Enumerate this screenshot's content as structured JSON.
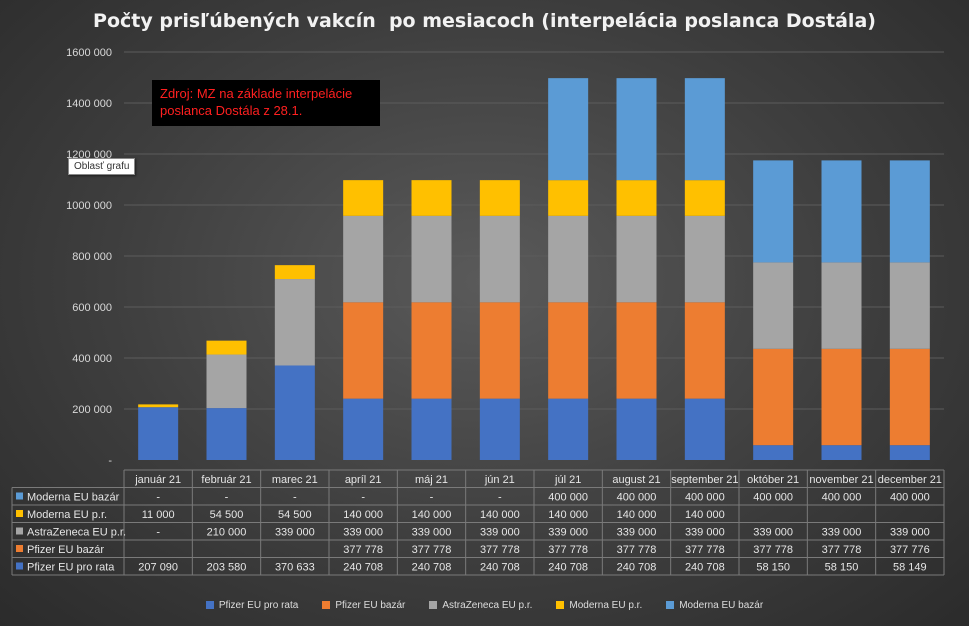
{
  "chart_data": {
    "type": "stacked-bar",
    "title": "Počty prisľúbených vakcín  po mesiacoch (interpelácia poslanca Dostála)",
    "categories": [
      "január 21",
      "február 21",
      "marec 21",
      "apríl 21",
      "máj 21",
      "jún 21",
      "júl 21",
      "august 21",
      "september 21",
      "október 21",
      "november 21",
      "december 21"
    ],
    "ylim": [
      0,
      1600000
    ],
    "yticks": [
      "-",
      "200 000",
      "400 000",
      "600 000",
      "800 000",
      "1000 000",
      "1200 000",
      "1400 000",
      "1600 000"
    ],
    "series": [
      {
        "name": "Pfizer EU pro rata",
        "color": "#4472c4",
        "values": [
          207090,
          203580,
          370633,
          240708,
          240708,
          240708,
          240708,
          240708,
          240708,
          58150,
          58150,
          58149
        ],
        "labels": [
          "207 090",
          "203 580",
          "370 633",
          "240 708",
          "240 708",
          "240 708",
          "240 708",
          "240 708",
          "240 708",
          "58 150",
          "58 150",
          "58 149"
        ]
      },
      {
        "name": "Pfizer EU bazár",
        "color": "#ed7d31",
        "values": [
          0,
          0,
          0,
          377778,
          377778,
          377778,
          377778,
          377778,
          377778,
          377778,
          377778,
          377776
        ],
        "labels": [
          "",
          "",
          "",
          "377 778",
          "377 778",
          "377 778",
          "377 778",
          "377 778",
          "377 778",
          "377 778",
          "377 778",
          "377 776"
        ]
      },
      {
        "name": "AstraZeneca EU p.r.",
        "color": "#a5a5a5",
        "values": [
          0,
          210000,
          339000,
          339000,
          339000,
          339000,
          339000,
          339000,
          339000,
          339000,
          339000,
          339000
        ],
        "labels": [
          "-",
          "210 000",
          "339 000",
          "339 000",
          "339 000",
          "339 000",
          "339 000",
          "339 000",
          "339 000",
          "339 000",
          "339 000",
          "339 000"
        ]
      },
      {
        "name": "Moderna EU p.r.",
        "color": "#ffc000",
        "values": [
          11000,
          54500,
          54500,
          140000,
          140000,
          140000,
          140000,
          140000,
          140000,
          0,
          0,
          0
        ],
        "labels": [
          "11 000",
          "54 500",
          "54 500",
          "140 000",
          "140 000",
          "140 000",
          "140 000",
          "140 000",
          "140 000",
          "",
          "",
          ""
        ]
      },
      {
        "name": "Moderna EU bazár",
        "color": "#5b9bd5",
        "values": [
          0,
          0,
          0,
          0,
          0,
          0,
          400000,
          400000,
          400000,
          400000,
          400000,
          400000
        ],
        "labels": [
          "-",
          "-",
          "-",
          "-",
          "-",
          "-",
          "400 000",
          "400 000",
          "400 000",
          "400 000",
          "400 000",
          "400 000"
        ]
      }
    ]
  },
  "source_note": {
    "line1": "Zdroj: MZ na základe interpelácie",
    "line2": "poslanca Dostála z 28.1."
  },
  "tooltip": "Oblasť grafu"
}
